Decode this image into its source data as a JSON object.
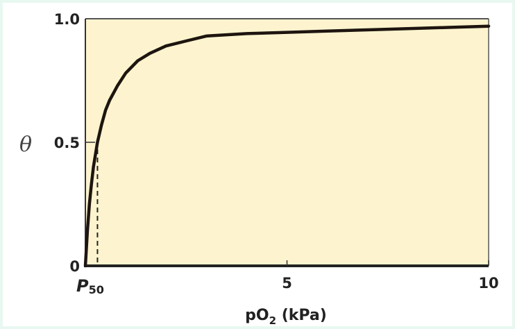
{
  "chart_data": {
    "type": "line",
    "title": "",
    "xlabel": "pO2 (kPa)",
    "xlabel_main": "pO",
    "xlabel_sub": "2",
    "xlabel_unit": " (kPa)",
    "ylabel": "θ",
    "xlim": [
      0,
      10
    ],
    "ylim": [
      0,
      1.0
    ],
    "x_ticks": [
      {
        "value": 5,
        "label": "5"
      },
      {
        "value": 10,
        "label": "10"
      }
    ],
    "y_ticks": [
      {
        "value": 0,
        "label": "0"
      },
      {
        "value": 0.5,
        "label": "0.5"
      },
      {
        "value": 1.0,
        "label": "1.0"
      }
    ],
    "p50_marker": {
      "value": 0.3,
      "label_main": "P",
      "label_sub": "50"
    },
    "grid": false,
    "colors": {
      "plot_bg": "#fdf4cf",
      "line": "#1e1510",
      "frame": "#e8f8f1"
    },
    "series": [
      {
        "name": "θ",
        "x": [
          0,
          0.05,
          0.1,
          0.15,
          0.2,
          0.3,
          0.4,
          0.5,
          0.6,
          0.8,
          1.0,
          1.3,
          1.6,
          2.0,
          2.5,
          3.0,
          3.5,
          4,
          5,
          6,
          7,
          8,
          9,
          10
        ],
        "y": [
          0,
          0.14,
          0.25,
          0.33,
          0.4,
          0.5,
          0.57,
          0.63,
          0.67,
          0.73,
          0.78,
          0.83,
          0.86,
          0.89,
          0.91,
          0.93,
          0.935,
          0.94,
          0.945,
          0.95,
          0.955,
          0.96,
          0.965,
          0.97
        ]
      }
    ]
  }
}
